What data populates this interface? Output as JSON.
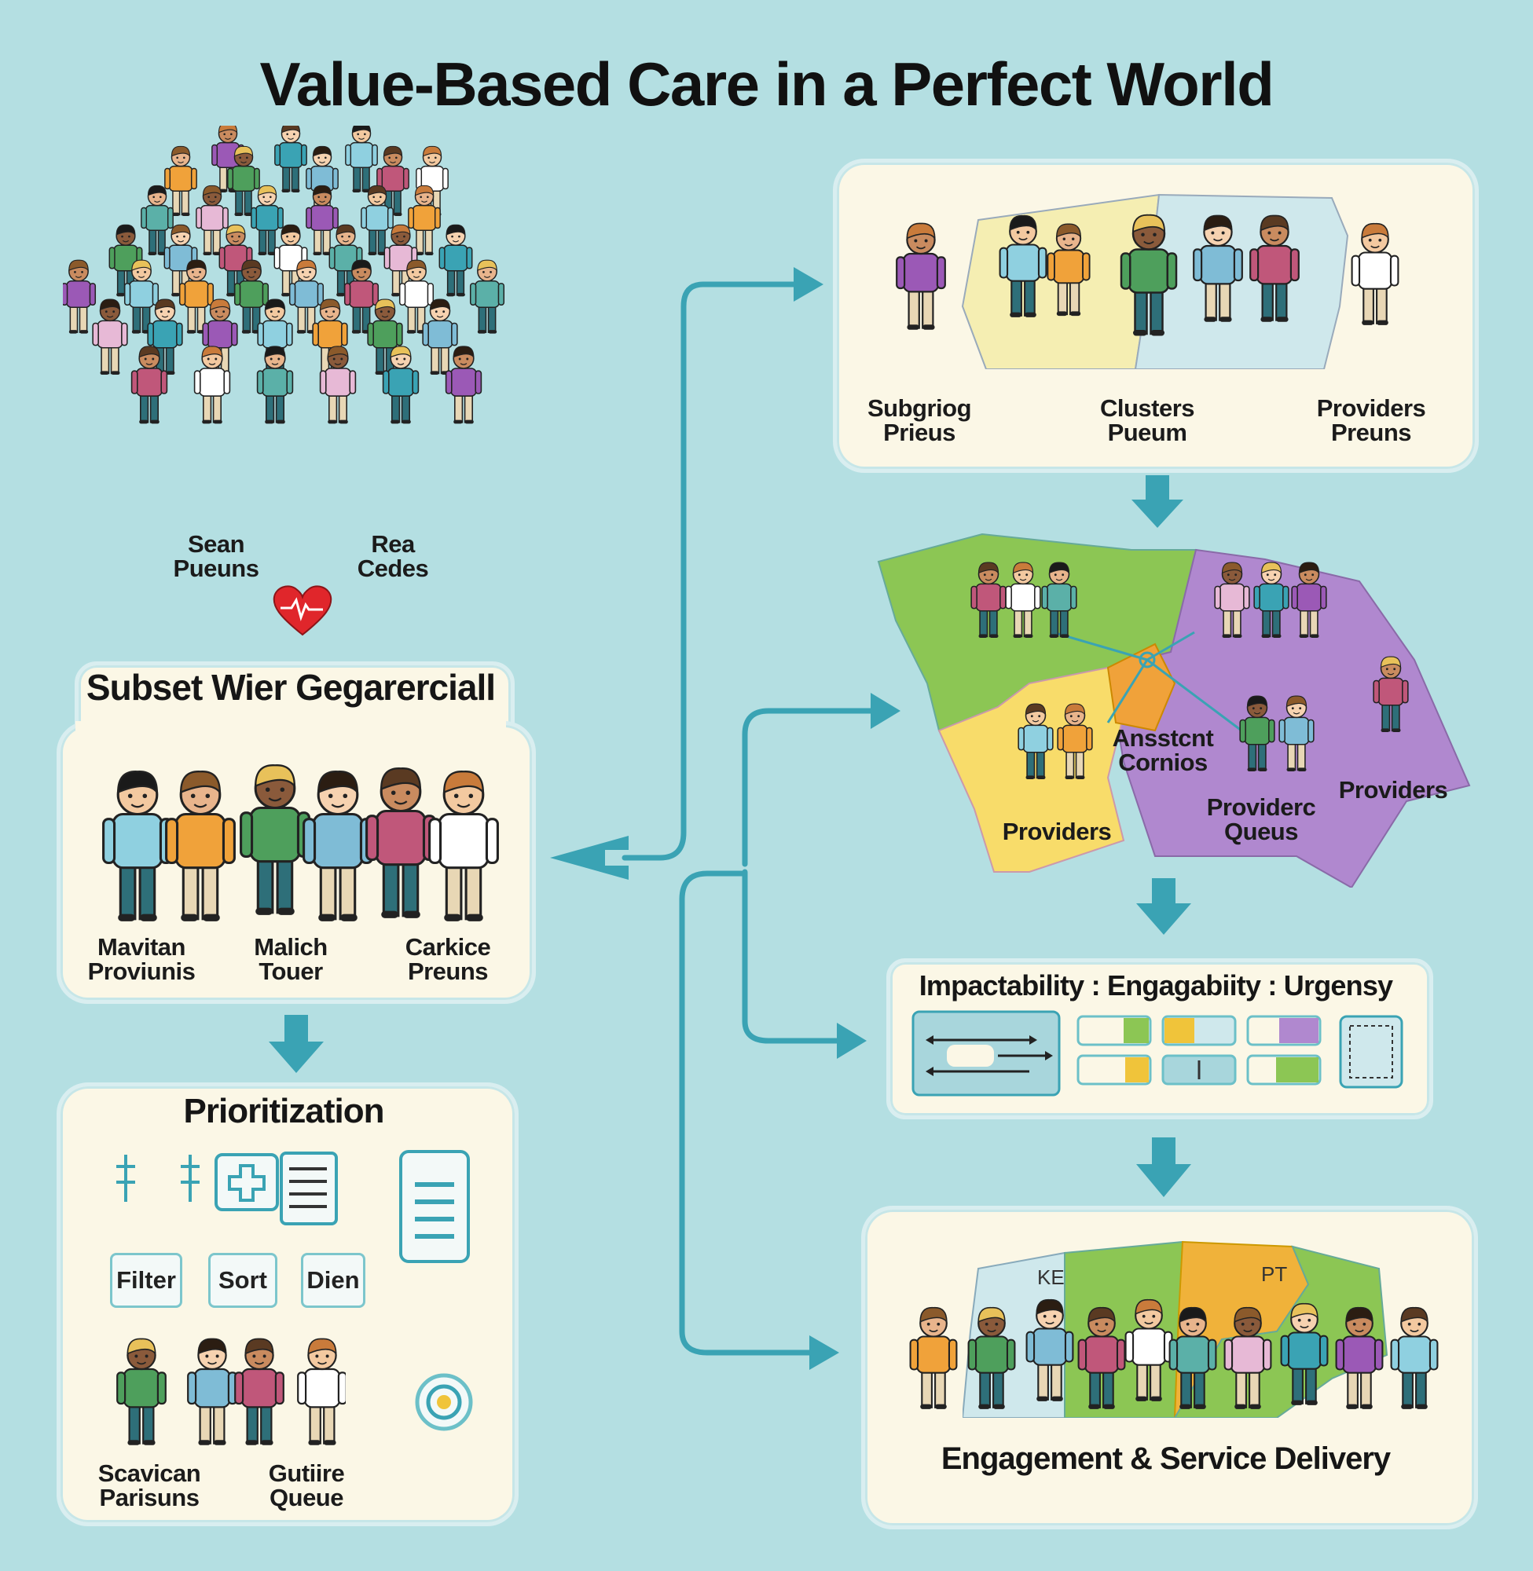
{
  "title": "Value-Based Care in a Perfect World",
  "population": {
    "label_left": [
      "Sean",
      "Pueuns"
    ],
    "label_right": [
      "Rea",
      "Cedes"
    ]
  },
  "subset": {
    "header": "Subset Wier Gegarerciall",
    "labels": [
      [
        "Mavitan",
        "Proviunis"
      ],
      [
        "Malich",
        "Touer"
      ],
      [
        "Carkice",
        "Preuns"
      ]
    ]
  },
  "prioritization": {
    "header": "Prioritization",
    "buttons": [
      "Filter",
      "Sort",
      "Dien"
    ],
    "labels": [
      [
        "Scavican",
        "Parisuns"
      ],
      [
        "Gutiire",
        "Queue"
      ]
    ]
  },
  "clusters_panel": {
    "labels": [
      [
        "Subgriog",
        "Prieus"
      ],
      [
        "Clusters",
        "Pueum"
      ],
      [
        "Providers",
        "Preuns"
      ]
    ]
  },
  "map_panel": {
    "labels": {
      "assistant": [
        "Ansstcnt",
        "Cornios"
      ],
      "providers_left": "Providers",
      "provider_queues": [
        "Providerc",
        "Queus"
      ],
      "providers_right": "Providers"
    }
  },
  "scoring": {
    "header": "Impactability : Engagabiity : Urgensy"
  },
  "engagement": {
    "region_labels": [
      "KE",
      "PT"
    ],
    "caption": "Engagement & Service Delivery"
  },
  "colors": {
    "background": "#b4dfe2",
    "panel": "#fbf7e6",
    "arrow": "#3aa3b4",
    "green_region": "#8cc654",
    "purple_region": "#b088cf",
    "yellow_region": "#f8dc6a",
    "orange_region": "#f0a23a"
  }
}
